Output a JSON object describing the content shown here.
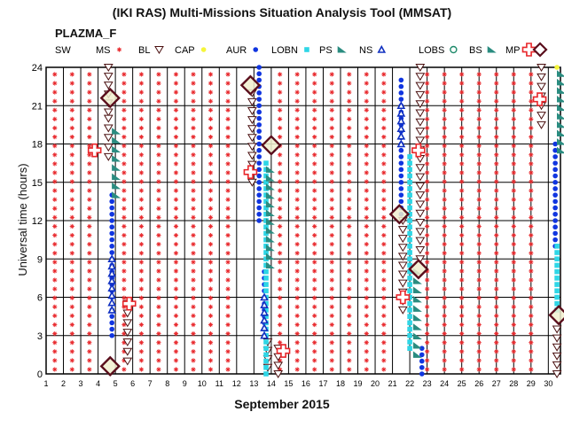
{
  "title": "(IKI RAS) Multi-Missions Situation Analysis Tool (MMSAT)",
  "subtitle": "PLAZMA_F",
  "legend": [
    {
      "label": "SW",
      "icon": "none"
    },
    {
      "label": "MS",
      "icon": "red-asterisk-icon",
      "color": "#e8262a"
    },
    {
      "label": "BL",
      "icon": "open-down-triangle-icon",
      "color": "#4a1010"
    },
    {
      "label": "CAP",
      "icon": "yellow-dot-icon",
      "color": "#f5f53a"
    },
    {
      "label": "AUR",
      "icon": "blue-dot-icon",
      "color": "#1035e0"
    },
    {
      "label": "LOBN",
      "icon": "cyan-square-icon",
      "color": "#2ed6e6"
    },
    {
      "label": "PS",
      "icon": "teal-flag-icon",
      "color": "#2a8c80"
    },
    {
      "label": "NS",
      "icon": "open-up-triangle-icon",
      "color": "#1030c0"
    },
    {
      "label": "LOBS",
      "icon": "open-circle-icon",
      "color": "#1e8a6a"
    },
    {
      "label": "BS",
      "icon": "teal-flag-icon",
      "color": "#2a8c80"
    },
    {
      "label": "MP",
      "icon": "red-open-cross-icon",
      "color": "#e8262a"
    },
    {
      "label": "",
      "icon": "dark-red-diamond-icon",
      "color": "#5a0e1c"
    }
  ],
  "chart_data": {
    "type": "scatter",
    "title": "(IKI RAS) Multi-Missions Situation Analysis Tool (MMSAT)",
    "xlabel": "September 2015",
    "ylabel": "Universal time (hours)",
    "xlim": [
      1,
      30.7
    ],
    "ylim": [
      0,
      24
    ],
    "x_ticks": [
      1,
      2,
      3,
      4,
      5,
      6,
      7,
      8,
      9,
      10,
      11,
      12,
      13,
      14,
      15,
      16,
      17,
      18,
      19,
      20,
      21,
      22,
      23,
      24,
      25,
      26,
      27,
      28,
      29,
      30
    ],
    "y_ticks": [
      0,
      3,
      6,
      9,
      12,
      15,
      18,
      21,
      24
    ],
    "grid": true,
    "background_region": {
      "name": "MS",
      "symbol": "red-asterisk",
      "columns_x": [
        1.5,
        2.5,
        3.5,
        5.5,
        6.5,
        7.5,
        8.5,
        9.5,
        10.5,
        11.5,
        14.5,
        15.5,
        16.5,
        17.5,
        18.5,
        19.5,
        20.5,
        23.0,
        24.0,
        25.0,
        26.0,
        27.0,
        28.0,
        29.0
      ],
      "y_from": 0,
      "y_to": 24
    },
    "series": [
      {
        "name": "BL",
        "points": [
          {
            "x": 4.6,
            "y_from": 20.5,
            "y_to": 24
          },
          {
            "x": 4.6,
            "y_from": 17.0,
            "y_to": 20.0
          },
          {
            "x": 5.7,
            "y_from": 1.0,
            "y_to": 5.5
          },
          {
            "x": 12.9,
            "y_from": 15.0,
            "y_to": 22.0
          },
          {
            "x": 13.8,
            "y_from": 0.5,
            "y_to": 2.5
          },
          {
            "x": 14.4,
            "y_from": 0.0,
            "y_to": 2.0
          },
          {
            "x": 21.6,
            "y_from": 5.0,
            "y_to": 12.0
          },
          {
            "x": 22.6,
            "y_from": 9.0,
            "y_to": 24
          },
          {
            "x": 29.6,
            "y_from": 19.5,
            "y_to": 24
          },
          {
            "x": 30.5,
            "y_from": 0.0,
            "y_to": 3.5
          }
        ]
      },
      {
        "name": "AUR",
        "points": [
          {
            "x": 4.8,
            "y_from": 3.0,
            "y_to": 14.0
          },
          {
            "x": 13.3,
            "y_from": 12.0,
            "y_to": 24
          },
          {
            "x": 13.6,
            "y_from": 3.0,
            "y_to": 8.0
          },
          {
            "x": 21.5,
            "y_from": 12.5,
            "y_to": 23.0
          },
          {
            "x": 22.7,
            "y_from": 0.0,
            "y_to": 2.0
          },
          {
            "x": 30.4,
            "y_from": 10.0,
            "y_to": 18.0
          }
        ]
      },
      {
        "name": "LOBN",
        "points": [
          {
            "x": 13.7,
            "y_from": 0.0,
            "y_to": 16.5
          },
          {
            "x": 22.0,
            "y_from": 2.0,
            "y_to": 17.0
          },
          {
            "x": 30.5,
            "y_from": 5.0,
            "y_to": 10.0
          }
        ]
      },
      {
        "name": "NS",
        "points": [
          {
            "x": 4.8,
            "y_from": 5.0,
            "y_to": 9.0
          },
          {
            "x": 13.6,
            "y_from": 3.0,
            "y_to": 6.0
          },
          {
            "x": 21.5,
            "y_from": 18.0,
            "y_to": 21.0
          }
        ]
      },
      {
        "name": "PS",
        "points": [
          {
            "x": 5.0,
            "y_from": 14.0,
            "y_to": 19.0
          },
          {
            "x": 13.9,
            "y_from": 8.5,
            "y_to": 16.0
          },
          {
            "x": 22.4,
            "y_from": 1.5,
            "y_to": 8.0
          },
          {
            "x": 30.7,
            "y_from": 17.5,
            "y_to": 23.5
          }
        ]
      },
      {
        "name": "CAP",
        "points": [
          {
            "x": 30.5,
            "y_from": 24.0,
            "y_to": 24.0
          }
        ]
      },
      {
        "name": "MP",
        "points": [
          {
            "x": 3.8,
            "y": 17.5
          },
          {
            "x": 5.8,
            "y": 5.5
          },
          {
            "x": 12.8,
            "y": 15.8
          },
          {
            "x": 14.7,
            "y": 1.8
          },
          {
            "x": 21.6,
            "y": 6.0
          },
          {
            "x": 22.5,
            "y": 17.5
          },
          {
            "x": 29.5,
            "y": 21.5
          }
        ]
      },
      {
        "name": "",
        "points": [
          {
            "x": 4.7,
            "y": 0.6
          },
          {
            "x": 4.7,
            "y": 21.6
          },
          {
            "x": 12.8,
            "y": 22.6
          },
          {
            "x": 14.0,
            "y": 17.9
          },
          {
            "x": 21.4,
            "y": 12.5
          },
          {
            "x": 22.5,
            "y": 8.2
          },
          {
            "x": 30.6,
            "y": 4.6
          }
        ]
      }
    ]
  }
}
